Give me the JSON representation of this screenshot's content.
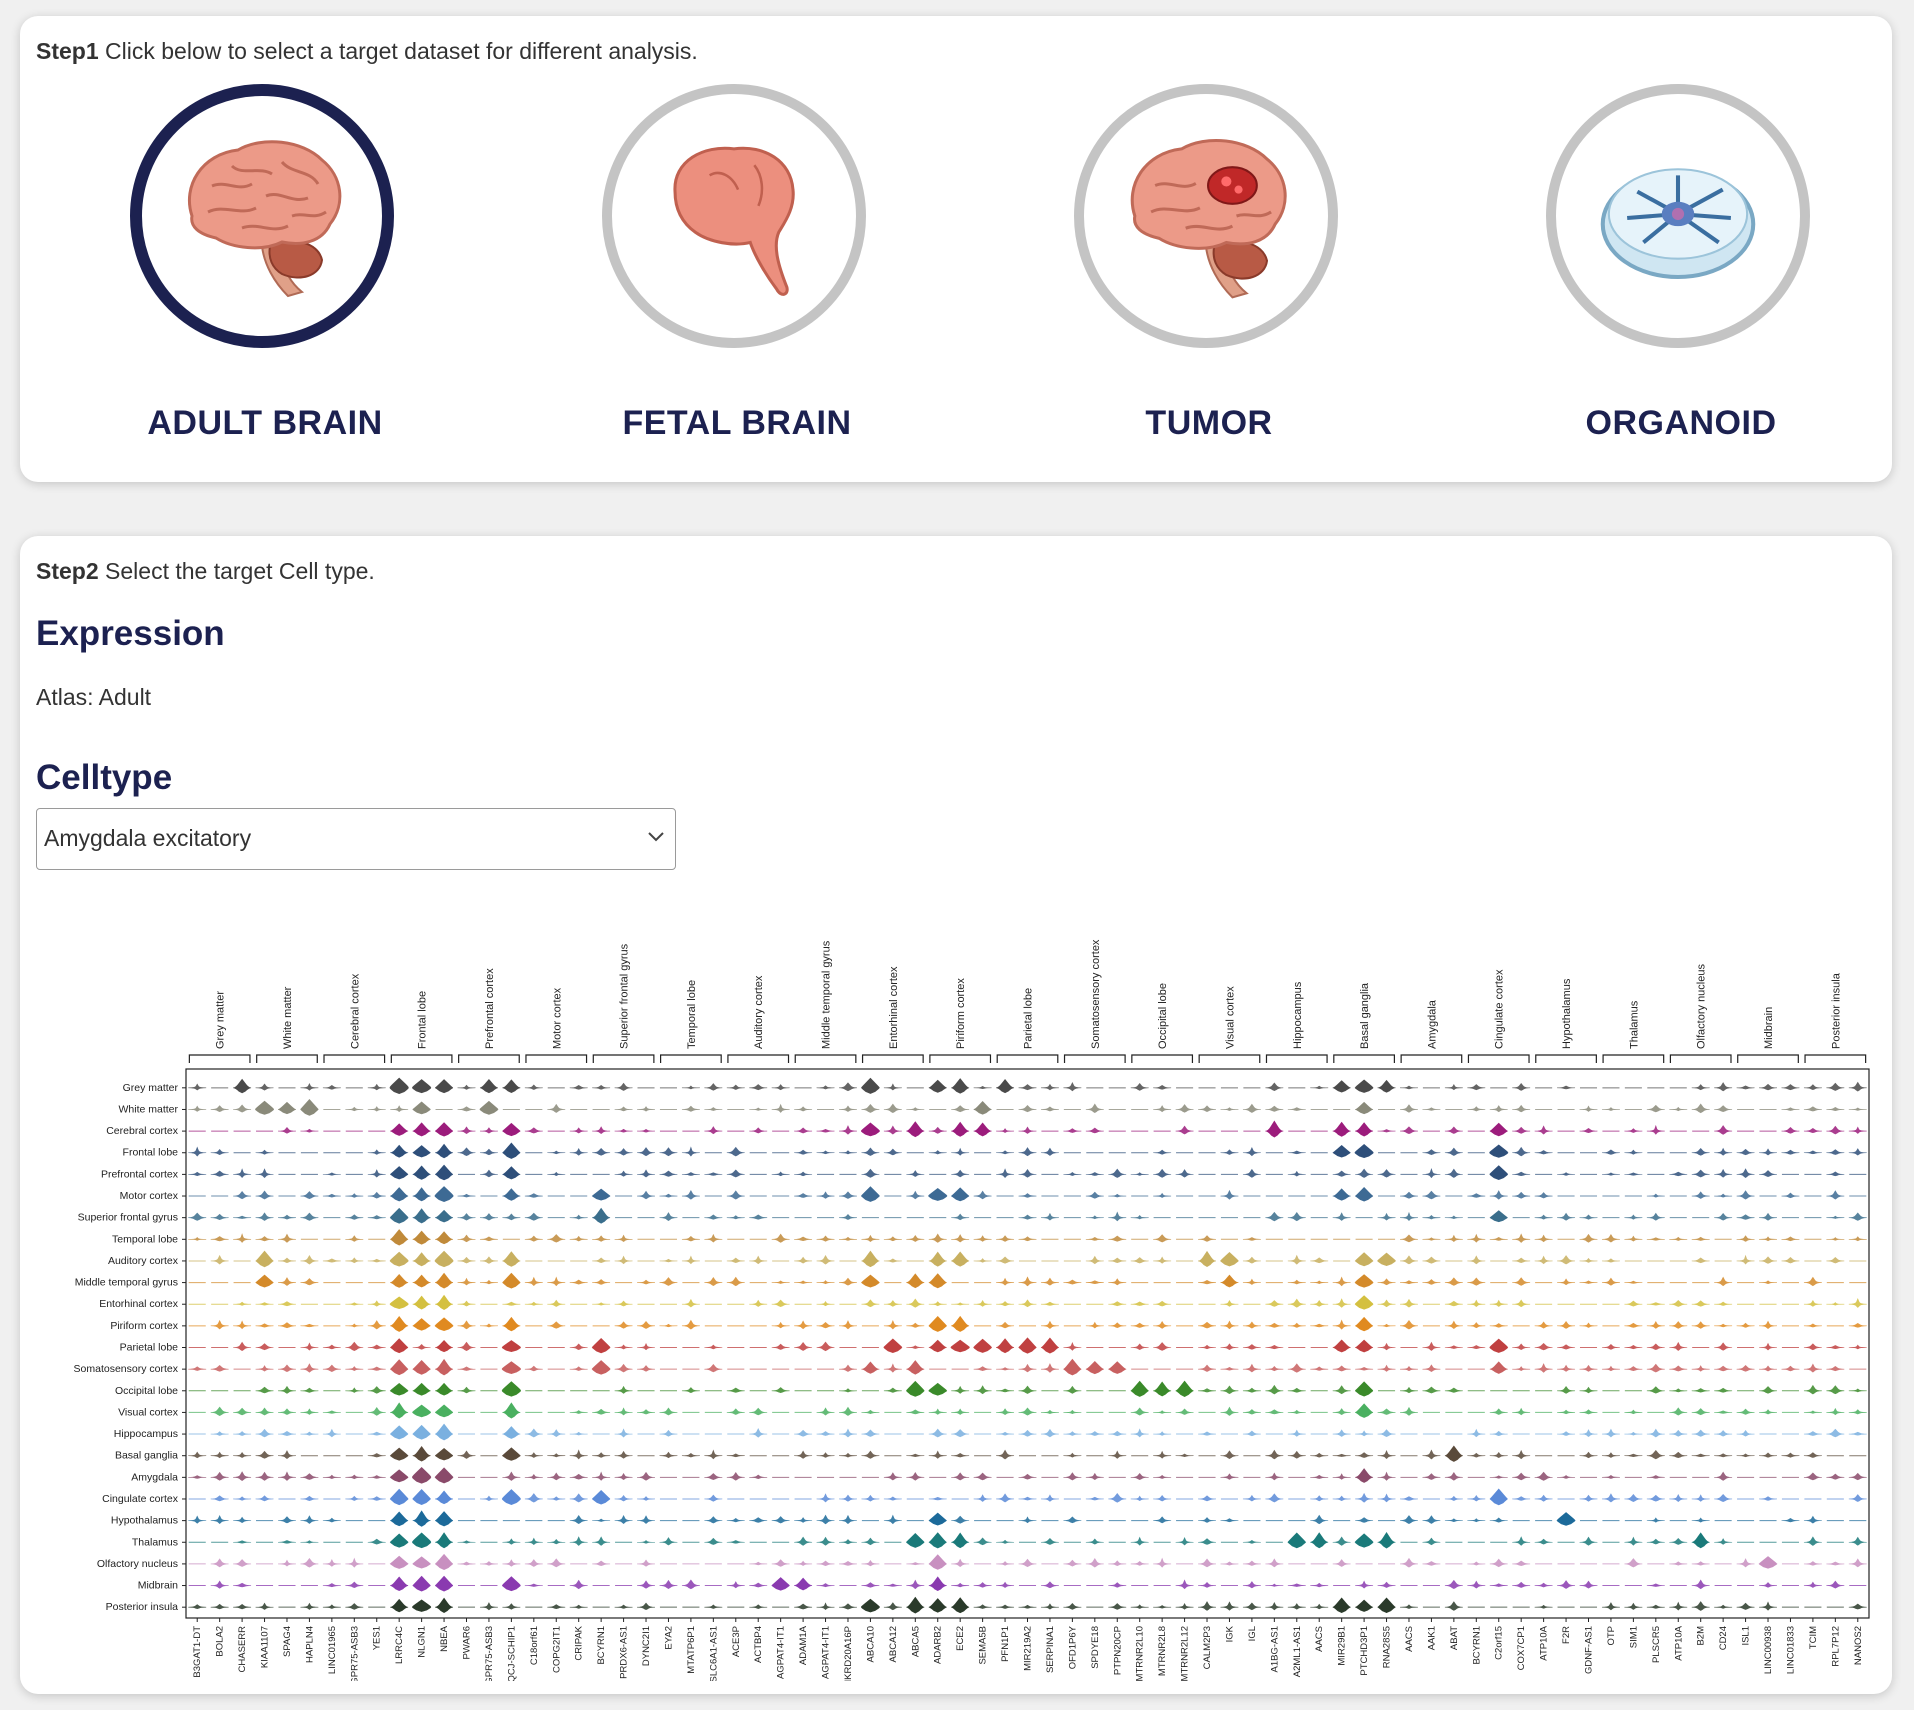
{
  "step1": {
    "bold": "Step1",
    "text": " Click below to select a target dataset for different analysis."
  },
  "datasets": [
    {
      "label": "ADULT BRAIN",
      "icon": "adult-brain-icon",
      "selected": true
    },
    {
      "label": "FETAL BRAIN",
      "icon": "fetal-brain-icon",
      "selected": false
    },
    {
      "label": "TUMOR",
      "icon": "tumor-brain-icon",
      "selected": false
    },
    {
      "label": "ORGANOID",
      "icon": "organoid-dish-icon",
      "selected": false
    }
  ],
  "step2": {
    "bold": "Step2",
    "text": " Select the target Cell type."
  },
  "expression": {
    "title": "Expression",
    "atlas": "Atlas: Adult"
  },
  "celltype": {
    "title": "Celltype",
    "selected": "Amygdala excitatory",
    "icon": "chevron-down-icon"
  },
  "colors": {
    "accent": "#1c2150",
    "ring_inactive": "#c4c4c4"
  },
  "chart_data": {
    "type": "stacked-violin",
    "groups": [
      {
        "name": "Grey matter",
        "genes": [
          "B3GAT1-DT",
          "BOLA2",
          "CHASERR"
        ]
      },
      {
        "name": "White matter",
        "genes": [
          "KIAA1107",
          "SPAG4",
          "HAPLN4"
        ]
      },
      {
        "name": "Cerebral cortex",
        "genes": [
          "LINC01965",
          "GPR75-ASB3",
          "YES1"
        ]
      },
      {
        "name": "Frontal lobe",
        "genes": [
          "LRRC4C",
          "NLGN1",
          "NBEA"
        ]
      },
      {
        "name": "Prefrontal cortex",
        "genes": [
          "PWAR6",
          "GPR75-ASB3",
          "IQCJ-SCHIP1"
        ]
      },
      {
        "name": "Motor cortex",
        "genes": [
          "C18orf61",
          "COPG2IT1",
          "CRIPAK"
        ]
      },
      {
        "name": "Superior frontal gyrus",
        "genes": [
          "BCYRN1",
          "PRDX6-AS1",
          "DYNC2I1"
        ]
      },
      {
        "name": "Temporal lobe",
        "genes": [
          "EYA2",
          "MTATP6P1",
          "SLC6A1-AS1"
        ]
      },
      {
        "name": "Auditory cortex",
        "genes": [
          "ACE3P",
          "ACTBP4",
          "AGPAT4-IT1"
        ]
      },
      {
        "name": "Middle temporal gyrus",
        "genes": [
          "ADAM1A",
          "AGPAT4-IT1",
          "ANKRD20A16P"
        ]
      },
      {
        "name": "Entorhinal cortex",
        "genes": [
          "ABCA10",
          "ABCA12",
          "ABCA5"
        ]
      },
      {
        "name": "Piriform cortex",
        "genes": [
          "ADARB2",
          "ECE2",
          "SEMA5B"
        ]
      },
      {
        "name": "Parietal lobe",
        "genes": [
          "PFN1P1",
          "MIR219A2",
          "SERPINA1"
        ]
      },
      {
        "name": "Somatosensory cortex",
        "genes": [
          "OFD1P6Y",
          "SPDYE18",
          "PTPN20CP"
        ]
      },
      {
        "name": "Occipital lobe",
        "genes": [
          "MTRNR2L10",
          "MTRNR2L8",
          "MTRNR2L12"
        ]
      },
      {
        "name": "Visual cortex",
        "genes": [
          "CALM2P3",
          "IGK",
          "IGL"
        ]
      },
      {
        "name": "Hippocampus",
        "genes": [
          "A1BG-AS1",
          "A2ML1-AS1",
          "AACS"
        ]
      },
      {
        "name": "Basal ganglia",
        "genes": [
          "MIR29B1",
          "PTCHD3P1",
          "RNA28S5"
        ]
      },
      {
        "name": "Amygdala",
        "genes": [
          "AACS",
          "AAK1",
          "ABAT"
        ]
      },
      {
        "name": "Cingulate cortex",
        "genes": [
          "BCYRN1",
          "C2orf15",
          "COX7CP1"
        ]
      },
      {
        "name": "Hypothalamus",
        "genes": [
          "ATP10A",
          "F2R",
          "GDNF-AS1"
        ]
      },
      {
        "name": "Thalamus",
        "genes": [
          "OTP",
          "SIM1",
          "PLSCR5"
        ]
      },
      {
        "name": "Olfactory nucleus",
        "genes": [
          "ATP10A",
          "B2M",
          "CD24"
        ]
      },
      {
        "name": "Midbrain",
        "genes": [
          "ISL1",
          "LINC00938",
          "LINC01833"
        ]
      },
      {
        "name": "Posterior insula",
        "genes": [
          "TCIM",
          "RPL7P12",
          "NANOS2"
        ]
      }
    ],
    "rows": [
      "Grey matter",
      "White matter",
      "Cerebral cortex",
      "Frontal lobe",
      "Prefrontal cortex",
      "Motor cortex",
      "Superior frontal gyrus",
      "Temporal lobe",
      "Auditory cortex",
      "Middle temporal gyrus",
      "Entorhinal cortex",
      "Piriform cortex",
      "Parietal lobe",
      "Somatosensory cortex",
      "Occipital lobe",
      "Visual cortex",
      "Hippocampus",
      "Basal ganglia",
      "Amygdala",
      "Cingulate cortex",
      "Hypothalamus",
      "Thalamus",
      "Olfactory nucleus",
      "Midbrain",
      "Posterior insula"
    ],
    "row_colors": [
      "#4a4a4a",
      "#8a8a7a",
      "#9c1c7c",
      "#2e4f7a",
      "#2e4f7a",
      "#3d6a94",
      "#3a6e8c",
      "#c08a3a",
      "#c8b060",
      "#d48a2a",
      "#d4c040",
      "#e08a20",
      "#c04040",
      "#c86060",
      "#3a8a2a",
      "#4ab060",
      "#7ab0e0",
      "#5a4a3a",
      "#8a4a6a",
      "#5a8ad8",
      "#1c6a9a",
      "#1a7a7a",
      "#c890c0",
      "#8a3ab0",
      "#2a3a2a"
    ],
    "strong": [
      [
        "Grey matter",
        [
          2,
          9,
          10,
          11,
          13,
          14,
          30,
          33,
          34,
          36,
          51,
          52,
          53
        ]
      ],
      [
        "White matter",
        [
          3,
          4,
          5,
          10,
          13,
          35,
          52
        ]
      ],
      [
        "Cerebral cortex",
        [
          9,
          10,
          11,
          14,
          30,
          32,
          34,
          35,
          48,
          51,
          52,
          58
        ]
      ],
      [
        "Frontal lobe",
        [
          9,
          10,
          11,
          14,
          51,
          52,
          58
        ]
      ],
      [
        "Prefrontal cortex",
        [
          9,
          10,
          11,
          14,
          58
        ]
      ],
      [
        "Motor cortex",
        [
          9,
          10,
          11,
          14,
          18,
          30,
          33,
          34,
          51,
          52
        ]
      ],
      [
        "Superior frontal gyrus",
        [
          9,
          10,
          11,
          18,
          58
        ]
      ],
      [
        "Temporal lobe",
        [
          9,
          10,
          11
        ]
      ],
      [
        "Auditory cortex",
        [
          3,
          9,
          10,
          11,
          14,
          30,
          33,
          34,
          45,
          46,
          52,
          53
        ]
      ],
      [
        "Middle temporal gyrus",
        [
          3,
          9,
          10,
          11,
          14,
          30,
          32,
          33,
          46,
          52
        ]
      ],
      [
        "Entorhinal cortex",
        [
          9,
          10,
          11,
          52
        ]
      ],
      [
        "Piriform cortex",
        [
          9,
          10,
          11,
          14,
          33,
          34,
          52
        ]
      ],
      [
        "Parietal lobe",
        [
          9,
          11,
          14,
          18,
          31,
          33,
          34,
          35,
          36,
          37,
          38,
          51,
          52,
          58
        ]
      ],
      [
        "Somatosensory cortex",
        [
          9,
          10,
          11,
          14,
          18,
          30,
          32,
          39,
          40,
          41,
          58
        ]
      ],
      [
        "Occipital lobe",
        [
          9,
          10,
          11,
          14,
          32,
          33,
          42,
          43,
          44,
          52
        ]
      ],
      [
        "Visual cortex",
        [
          9,
          10,
          11,
          14,
          52
        ]
      ],
      [
        "Hippocampus",
        [
          9,
          10,
          11,
          14
        ]
      ],
      [
        "Basal ganglia",
        [
          9,
          10,
          11,
          14,
          56
        ]
      ],
      [
        "Amygdala",
        [
          9,
          10,
          11,
          52
        ]
      ],
      [
        "Cingulate cortex",
        [
          9,
          10,
          11,
          14,
          18,
          58
        ]
      ],
      [
        "Hypothalamus",
        [
          9,
          10,
          11,
          33,
          61
        ]
      ],
      [
        "Thalamus",
        [
          9,
          10,
          11,
          32,
          33,
          34,
          49,
          50,
          52,
          53,
          67
        ]
      ],
      [
        "Olfactory nucleus",
        [
          9,
          10,
          11,
          33,
          70
        ]
      ],
      [
        "Midbrain",
        [
          9,
          10,
          11,
          14,
          26,
          27,
          33
        ]
      ],
      [
        "Posterior insula",
        [
          9,
          10,
          11,
          30,
          32,
          33,
          34,
          51,
          52,
          53
        ]
      ]
    ]
  }
}
